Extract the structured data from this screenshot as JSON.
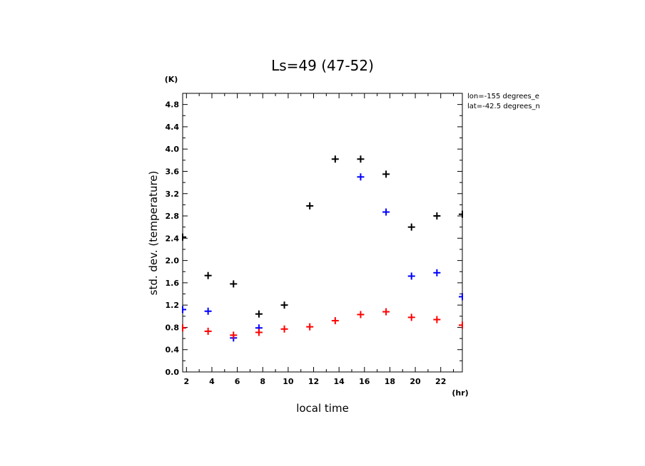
{
  "chart_data": {
    "type": "scatter",
    "title": "Ls=49 (47-52)",
    "xlabel": "local time",
    "ylabel": "std. dev. (temperature)",
    "x_unit": "(hr)",
    "y_unit": "(K)",
    "xlim": [
      1.7,
      23.7
    ],
    "ylim": [
      0.0,
      5.0
    ],
    "x_ticks": [
      "2",
      "4",
      "6",
      "8",
      "10",
      "12",
      "14",
      "16",
      "18",
      "20",
      "22"
    ],
    "y_ticks": [
      "0.0",
      "0.4",
      "0.8",
      "1.2",
      "1.6",
      "2.0",
      "2.4",
      "2.8",
      "3.2",
      "3.6",
      "4.0",
      "4.4",
      "4.8"
    ],
    "annotations": [
      "lon=-155 degrees_e",
      "lat=-42.5 degrees_n"
    ],
    "grid": false,
    "marker": "+",
    "series": [
      {
        "color": "#000000",
        "points": [
          [
            1.7,
            2.42
          ],
          [
            3.7,
            1.73
          ],
          [
            5.7,
            1.58
          ],
          [
            7.7,
            1.04
          ],
          [
            9.7,
            1.2
          ],
          [
            11.7,
            2.98
          ],
          [
            13.7,
            3.82
          ],
          [
            15.7,
            3.82
          ],
          [
            17.7,
            3.55
          ],
          [
            19.7,
            2.6
          ],
          [
            21.7,
            2.8
          ],
          [
            23.7,
            2.83
          ]
        ]
      },
      {
        "color": "#0000ff",
        "points": [
          [
            1.7,
            1.12
          ],
          [
            3.7,
            1.09
          ],
          [
            5.7,
            0.61
          ],
          [
            7.7,
            0.79
          ],
          [
            15.7,
            3.5
          ],
          [
            17.7,
            2.87
          ],
          [
            19.7,
            1.72
          ],
          [
            21.7,
            1.78
          ],
          [
            23.7,
            1.35
          ]
        ]
      },
      {
        "color": "#ff0000",
        "points": [
          [
            1.7,
            0.79
          ],
          [
            3.7,
            0.73
          ],
          [
            5.7,
            0.66
          ],
          [
            7.7,
            0.71
          ],
          [
            9.7,
            0.77
          ],
          [
            11.7,
            0.81
          ],
          [
            13.7,
            0.92
          ],
          [
            15.7,
            1.03
          ],
          [
            17.7,
            1.08
          ],
          [
            19.7,
            0.98
          ],
          [
            21.7,
            0.94
          ],
          [
            23.7,
            0.84
          ]
        ]
      }
    ]
  }
}
